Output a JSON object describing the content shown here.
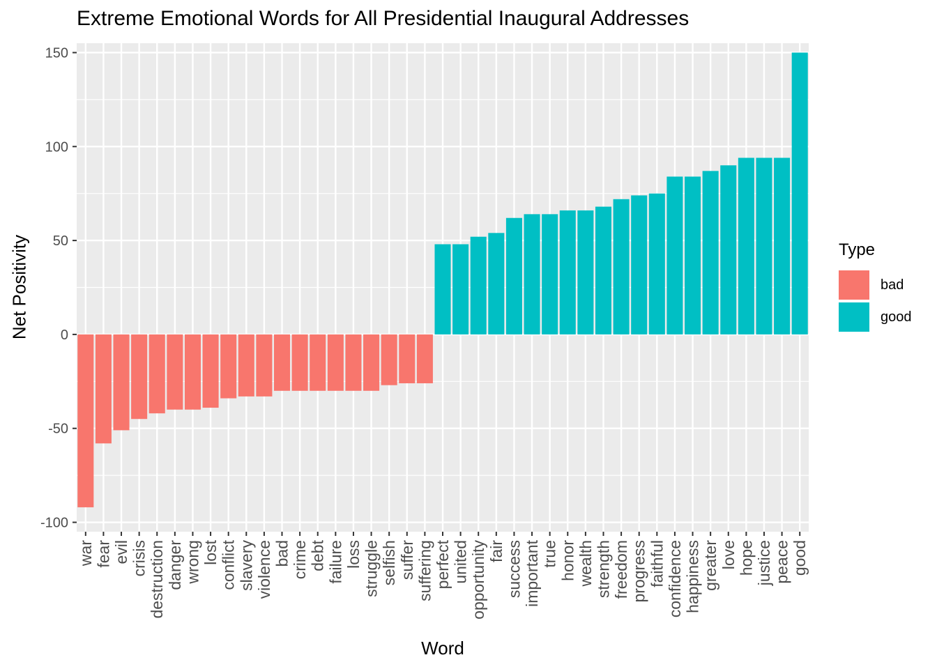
{
  "chart_data": {
    "type": "bar",
    "title": "Extreme Emotional Words for All Presidential Inaugural Addresses",
    "xlabel": "Word",
    "ylabel": "Net Positivity",
    "ylim": [
      -105,
      155
    ],
    "yticks": [
      -100,
      -50,
      0,
      50,
      100,
      150
    ],
    "ytick_labels": [
      "-100",
      "-50",
      "0",
      "50",
      "100",
      "150"
    ],
    "grid": true,
    "legend": {
      "title": "Type",
      "placement": "right",
      "entries": [
        {
          "label": "bad",
          "color": "#F8766D"
        },
        {
          "label": "good",
          "color": "#00BFC4"
        }
      ]
    },
    "categories": [
      "war",
      "fear",
      "evil",
      "crisis",
      "destruction",
      "danger",
      "wrong",
      "lost",
      "conflict",
      "slavery",
      "violence",
      "bad",
      "crime",
      "debt",
      "failure",
      "loss",
      "struggle",
      "selfish",
      "suffer",
      "suffering",
      "perfect",
      "united",
      "opportunity",
      "fair",
      "success",
      "important",
      "true",
      "honor",
      "wealth",
      "strength",
      "freedom",
      "progress",
      "faithful",
      "confidence",
      "happiness",
      "greater",
      "love",
      "hope",
      "justice",
      "peace",
      "good"
    ],
    "values": [
      -92,
      -58,
      -51,
      -45,
      -42,
      -40,
      -40,
      -39,
      -34,
      -33,
      -33,
      -30,
      -30,
      -30,
      -30,
      -30,
      -30,
      -27,
      -26,
      -26,
      48,
      48,
      52,
      54,
      62,
      64,
      64,
      66,
      66,
      68,
      72,
      74,
      75,
      84,
      84,
      87,
      90,
      94,
      94,
      94,
      150
    ],
    "types": [
      "bad",
      "bad",
      "bad",
      "bad",
      "bad",
      "bad",
      "bad",
      "bad",
      "bad",
      "bad",
      "bad",
      "bad",
      "bad",
      "bad",
      "bad",
      "bad",
      "bad",
      "bad",
      "bad",
      "bad",
      "good",
      "good",
      "good",
      "good",
      "good",
      "good",
      "good",
      "good",
      "good",
      "good",
      "good",
      "good",
      "good",
      "good",
      "good",
      "good",
      "good",
      "good",
      "good",
      "good",
      "good"
    ]
  }
}
